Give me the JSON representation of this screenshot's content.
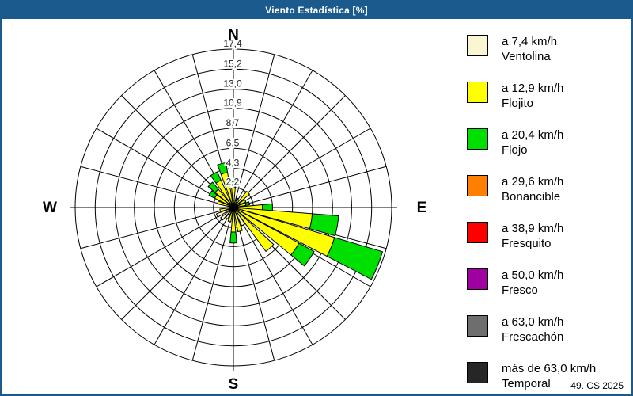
{
  "window": {
    "title": "Viento Estadística [%]",
    "title_bar_color": "#1A5A8C",
    "border_color": "#1A5A8C"
  },
  "footer": {
    "text": "49. CS 2025"
  },
  "compass": {
    "north": "N",
    "east": "E",
    "south": "S",
    "west": "W"
  },
  "legend": {
    "items": [
      {
        "key": "ventolina",
        "color": "#FAF6D2",
        "speed": "a 7,4 km/h",
        "name": "Ventolina"
      },
      {
        "key": "flojito",
        "color": "#FFFF00",
        "speed": "a 12,9 km/h",
        "name": "Flojito"
      },
      {
        "key": "flojo",
        "color": "#00E000",
        "speed": "a 20,4 km/h",
        "name": "Flojo"
      },
      {
        "key": "bonancible",
        "color": "#FF8000",
        "speed": "a 29,6 km/h",
        "name": "Bonancible"
      },
      {
        "key": "fresquito",
        "color": "#FF0000",
        "speed": "a 38,9 km/h",
        "name": "Fresquito"
      },
      {
        "key": "fresco",
        "color": "#A000A0",
        "speed": "a 50,0 km/h",
        "name": "Fresco"
      },
      {
        "key": "frescachon",
        "color": "#6E6E6E",
        "speed": "a 63,0 km/h",
        "name": "Frescachón"
      },
      {
        "key": "temporal",
        "color": "#262626",
        "speed": "más de 63,0 km/h",
        "name": "Temporal"
      }
    ]
  },
  "chart_data": {
    "type": "wind-rose-polar-bar",
    "title": "Viento Estadística [%]",
    "units": "%",
    "max_value": 17.4,
    "ring_values": [
      2.2,
      4.3,
      6.5,
      8.7,
      10.9,
      13.0,
      15.2,
      17.4
    ],
    "ring_labels": [
      "2,2",
      "4,3",
      "6,5",
      "8,7",
      "10,9",
      "13,0",
      "15,2",
      "17,4"
    ],
    "spoke_step_deg": 15,
    "petal_width_deg": 11,
    "grid_color": "#000000",
    "category_order": [
      "ventolina",
      "flojito",
      "flojo"
    ],
    "category_colors": {
      "ventolina": "#FAF6D2",
      "flojito": "#FFFF00",
      "flojo": "#00E000"
    },
    "bars": [
      {
        "dir": 0,
        "segments": {
          "flojito": 2.2,
          "flojo": 0.7
        }
      },
      {
        "dir": 22,
        "segments": {
          "flojito": 0.8,
          "flojo": 0.3
        }
      },
      {
        "dir": 45,
        "segments": {
          "flojito": 2.3
        }
      },
      {
        "dir": 60,
        "segments": {
          "flojito": 1.5
        }
      },
      {
        "dir": 75,
        "segments": {
          "flojito": 1.4,
          "flojo": 0.4
        }
      },
      {
        "dir": 90,
        "segments": {
          "flojito": 3.2,
          "flojo": 1.1
        }
      },
      {
        "dir": 100,
        "segments": {
          "flojito": 8.7,
          "flojo": 2.9
        }
      },
      {
        "dir": 112,
        "segments": {
          "flojito": 11.6,
          "flojo": 5.5
        }
      },
      {
        "dir": 124,
        "segments": {
          "flojito": 8.2,
          "flojo": 1.9
        }
      },
      {
        "dir": 138,
        "segments": {
          "flojito": 6.0
        }
      },
      {
        "dir": 150,
        "segments": {
          "ventolina": 2.2
        }
      },
      {
        "dir": 164,
        "segments": {
          "flojito": 2.7
        }
      },
      {
        "dir": 180,
        "segments": {
          "flojito": 2.7,
          "flojo": 1.2
        }
      },
      {
        "dir": 196,
        "segments": {
          "flojito": 1.6
        }
      },
      {
        "dir": 212,
        "segments": {
          "ventolina": 1.4
        }
      },
      {
        "dir": 226,
        "segments": {
          "ventolina": 1.8
        }
      },
      {
        "dir": 244,
        "segments": {
          "ventolina": 2.0
        }
      },
      {
        "dir": 258,
        "segments": {
          "flojito": 1.5
        }
      },
      {
        "dir": 288,
        "segments": {
          "flojito": 1.8
        }
      },
      {
        "dir": 302,
        "segments": {
          "flojito": 2.3,
          "flojo": 0.7
        }
      },
      {
        "dir": 315,
        "segments": {
          "flojito": 2.6,
          "flojo": 1.0
        }
      },
      {
        "dir": 330,
        "segments": {
          "flojito": 3.3,
          "flojo": 1.0
        }
      },
      {
        "dir": 345,
        "segments": {
          "flojito": 3.9,
          "flojo": 1.1
        }
      }
    ]
  }
}
